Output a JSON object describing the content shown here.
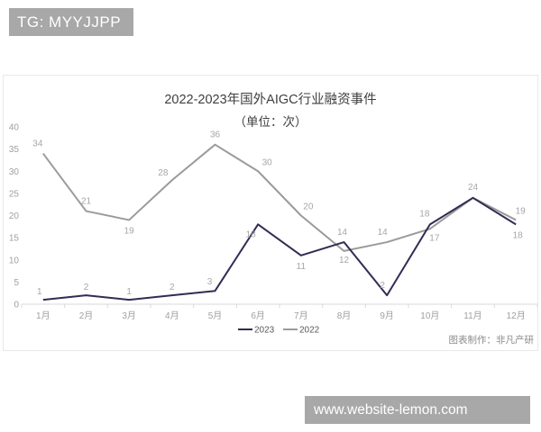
{
  "watermarks": {
    "top": "TG: MYYJJPP",
    "bottom": "www.website-lemon.com"
  },
  "chart_data": {
    "type": "line",
    "title": "2022-2023年国外AIGC行业融资事件",
    "subtitle": "（单位：次）",
    "categories": [
      "1月",
      "2月",
      "3月",
      "4月",
      "5月",
      "6月",
      "7月",
      "8月",
      "9月",
      "10月",
      "11月",
      "12月"
    ],
    "series": [
      {
        "name": "2023",
        "color": "#2f2d55",
        "values": [
          1,
          2,
          1,
          2,
          3,
          18,
          11,
          14,
          2,
          18,
          24,
          18
        ]
      },
      {
        "name": "2022",
        "color": "#9b9b9b",
        "values": [
          34,
          21,
          19,
          28,
          36,
          30,
          20,
          12,
          14,
          17,
          24,
          19
        ]
      }
    ],
    "ylim": [
      0,
      40
    ],
    "yticks": [
      0,
      5,
      10,
      15,
      20,
      25,
      30,
      35,
      40
    ],
    "grid": false,
    "legend_position": "bottom-center",
    "attribution": "图表制作：非凡产研"
  },
  "colors": {
    "watermark_bg": "#a8a8a8",
    "panel_border": "#e8e8e8",
    "axis_line": "#d9d9d9"
  }
}
